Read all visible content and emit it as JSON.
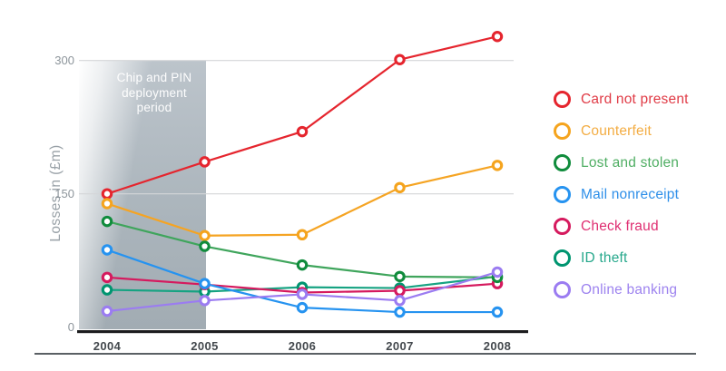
{
  "page": {
    "background": "#ffffff"
  },
  "chart_data": {
    "type": "line",
    "title": "",
    "xlabel": "",
    "ylabel": "Losses in (£m)",
    "categories": [
      "2004",
      "2005",
      "2006",
      "2007",
      "2008"
    ],
    "yticks": [
      "0",
      "150",
      "300"
    ],
    "ylim": [
      0,
      335
    ],
    "grid": "horizontal gridlines at 150 and 300",
    "legend_position": "right",
    "annotation": {
      "label": "Chip and PIN deployment period",
      "type": "shaded-band",
      "x_start": "2004",
      "x_end": "2005",
      "band_color": "#aab4bb",
      "text_color": "#ffffff"
    },
    "series": [
      {
        "name": "Card not present",
        "color": "#e5252e",
        "marker_color": "#e5252e",
        "label_color": "#e03b46",
        "values": [
          150,
          186,
          220,
          301,
          327
        ]
      },
      {
        "name": "Counterfeit",
        "color": "#f5a423",
        "marker_color": "#f5a41e",
        "label_color": "#f3ad44",
        "values": [
          139,
          103,
          104,
          157,
          182
        ]
      },
      {
        "name": "Lost and stolen",
        "color": "#3fa55c",
        "marker_color": "#108c3c",
        "label_color": "#4fae63",
        "values": [
          119,
          91,
          70,
          57,
          56
        ]
      },
      {
        "name": "Mail nonreceipt",
        "color": "#2693f0",
        "marker_color": "#2693f0",
        "label_color": "#2e8fe9",
        "values": [
          87,
          49,
          22,
          17,
          17
        ]
      },
      {
        "name": "Check fraud",
        "color": "#d51a5e",
        "marker_color": "#d51a5e",
        "label_color": "#df2f72",
        "values": [
          56,
          48,
          39,
          41,
          49
        ]
      },
      {
        "name": "ID theft",
        "color": "#16a382",
        "marker_color": "#009570",
        "label_color": "#27a88c",
        "values": [
          42,
          40,
          45,
          44,
          57
        ]
      },
      {
        "name": "Online banking",
        "color": "#9b7cf1",
        "marker_color": "#9b7cf1",
        "label_color": "#9d83ef",
        "values": [
          18,
          30,
          37,
          30,
          62
        ]
      }
    ],
    "axis_colors": {
      "gridline": "#d4d6d8",
      "axis_line": "#1c1c1e",
      "tick_text": "#8d959b",
      "year_text": "#43484d"
    }
  }
}
